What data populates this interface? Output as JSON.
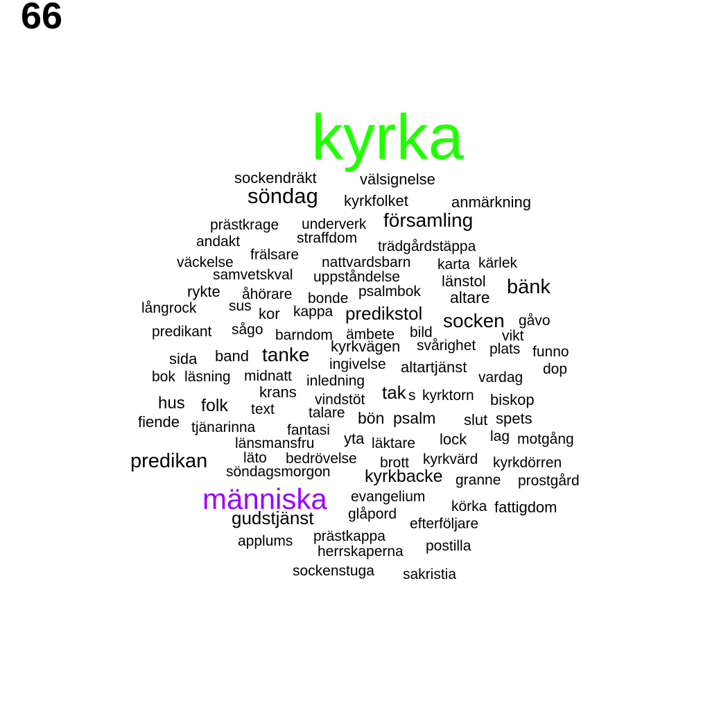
{
  "page_number": "66",
  "colors": {
    "highlight_primary": "#22ff00",
    "highlight_secondary": "#9b00ff",
    "default": "#000000"
  },
  "words": [
    "kyrka",
    "människa",
    "söndag",
    "församling",
    "predikan",
    "bänk",
    "socken",
    "predikstol",
    "tanke",
    "gudstjänst",
    "kyrkbacke",
    "sockendräkt",
    "välsignelse",
    "kyrkfolket",
    "anmärkning",
    "prästkrage",
    "underverk",
    "straffdom",
    "andakt",
    "trädgårdstäppa",
    "frälsare",
    "väckelse",
    "nattvardsbarn",
    "karta",
    "kärlek",
    "samvetskval",
    "uppståndelse",
    "länstol",
    "rykte",
    "åhörare",
    "bonde",
    "psalmbok",
    "altare",
    "långrock",
    "sus",
    "kor",
    "kappa",
    "gåvo",
    "predikant",
    "sågo",
    "barndom",
    "ämbete",
    "bild",
    "vikt",
    "kyrkvägen",
    "svårighet",
    "plats",
    "funno",
    "sida",
    "band",
    "ingivelse",
    "altartjänst",
    "dop",
    "bok",
    "läsning",
    "midnatt",
    "inledning",
    "vardag",
    "krans",
    "tak",
    "s",
    "kyrktorn",
    "biskop",
    "hus",
    "folk",
    "text",
    "vindstöt",
    "talare",
    "fiende",
    "bön",
    "psalm",
    "slut",
    "spets",
    "tjänarinna",
    "fantasi",
    "yta",
    "lag",
    "motgång",
    "länsmansfru",
    "läktare",
    "lock",
    "läto",
    "bedrövelse",
    "brott",
    "kyrkvärd",
    "kyrkdörren",
    "söndagsmorgon",
    "granne",
    "prostgård",
    "evangelium",
    "körka",
    "fattigdom",
    "glåpord",
    "efterföljare",
    "applums",
    "prästkappa",
    "herrskaperna",
    "postilla",
    "sockenstuga",
    "sakristia"
  ]
}
